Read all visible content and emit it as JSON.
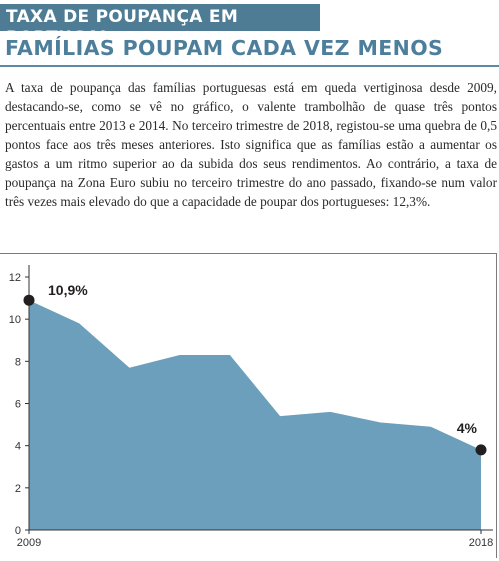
{
  "kicker": "TAXA DE POUPANÇA EM PORTUGAL",
  "headline": "FAMÍLIAS POUPAM CADA VEZ MENOS",
  "body": "A taxa de poupança das famílias portuguesas está em queda vertiginosa desde 2009, destacando-se, como se vê no gráfico, o valente trambolhão de quase três pontos percentuais entre 2013 e 2014. No terceiro trimestre de 2018, registou-se uma quebra de 0,5 pontos face aos três meses anteriores. Isto significa que as famílias estão a aumentar os gastos a um ritmo superior ao da subida dos seus rendimentos. Ao contrário, a taxa de poupança na Zona Euro subiu no terceiro trimestre do ano passado, fixando-se num valor três vezes mais elevado do que a capacidade de poupar dos portugueses: 12,3%.",
  "colors": {
    "area": "#6b9fbb",
    "kicker_bg": "#4f7c95",
    "headline": "#4d7f9c",
    "marker": "#231f20"
  },
  "chart_data": {
    "type": "area",
    "title": "",
    "xlabel": "",
    "ylabel": "",
    "x": [
      2009,
      2010,
      2011,
      2012,
      2013,
      2014,
      2015,
      2016,
      2017,
      2018
    ],
    "x_tick_labels": [
      "2009",
      "2018"
    ],
    "values": [
      10.9,
      9.8,
      7.7,
      8.3,
      8.3,
      5.4,
      5.6,
      5.1,
      4.9,
      3.8
    ],
    "ylim": [
      0,
      12
    ],
    "y_ticks": [
      0,
      2,
      4,
      6,
      8,
      10,
      12
    ],
    "grid": false,
    "annotations": [
      {
        "x": 2009,
        "y": 10.9,
        "label": "10,9%"
      },
      {
        "x": 2018,
        "y": 3.8,
        "label": "4%"
      }
    ]
  }
}
